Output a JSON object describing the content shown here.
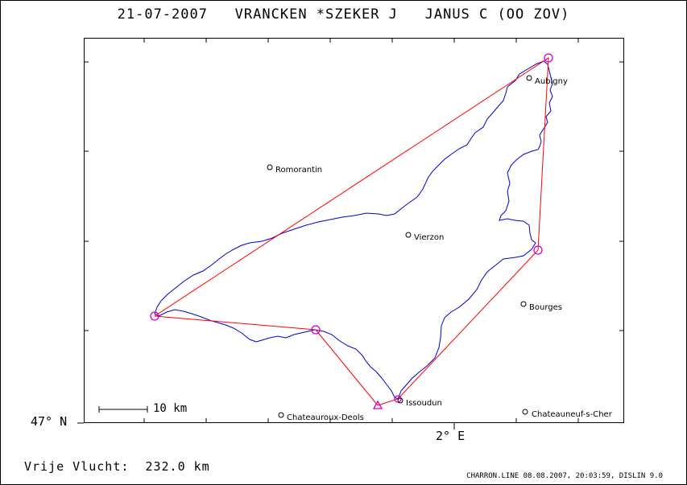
{
  "title": "21-07-2007   VRANCKEN *SZEKER J   JANUS C (OO ZOV)",
  "axes": {
    "y_label": "47° N",
    "x_label": "2° E"
  },
  "cities": [
    {
      "id": "aubigny",
      "name": "Aubigny"
    },
    {
      "id": "romorantin",
      "name": "Romorantin"
    },
    {
      "id": "vierzon",
      "name": "Vierzon"
    },
    {
      "id": "bourges",
      "name": "Bourges"
    },
    {
      "id": "issoudun",
      "name": "Issoudun"
    },
    {
      "id": "chateauroux",
      "name": "Chateauroux-Deols"
    },
    {
      "id": "chateauneuf",
      "name": "Chateauneuf-s-Cher"
    }
  ],
  "scale_bar": {
    "label": "10 km"
  },
  "footer": {
    "flight": "Vrije Vlucht:  232.0 km",
    "credit": "CHARRON.LINE 08.08.2007, 20:03:59, DISLIN 9.0"
  },
  "colors": {
    "task_line": "#ff0000",
    "track": "#0000cc",
    "turnpoint": "#cc00cc",
    "frame": "#000000"
  }
}
